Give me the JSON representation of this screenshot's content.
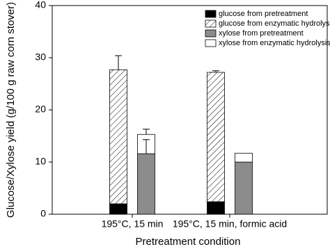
{
  "chart_data": {
    "type": "stacked-bar",
    "xlabel": "Pretreatment condition",
    "ylabel": "Glucose/Xylose yield (g/100 g raw corn stover)",
    "categories": [
      "195°C, 15 min",
      "195°C, 15 min, formic acid"
    ],
    "series": [
      {
        "name": "glucose from pretreatment",
        "color": "#000000",
        "hatch": false,
        "stack": 0,
        "values": [
          2.0,
          2.4
        ],
        "errors": [
          null,
          null
        ]
      },
      {
        "name": "glucose from enzymatic hydrolysis",
        "color": "#ffffff",
        "hatch": true,
        "stack": 0,
        "values": [
          25.7,
          24.8
        ],
        "errors": [
          2.7,
          0.3
        ]
      },
      {
        "name": "xylose from pretreatment",
        "color": "#8c8c8c",
        "hatch": false,
        "stack": 1,
        "values": [
          11.6,
          10.0
        ],
        "errors": [
          2.7,
          null
        ]
      },
      {
        "name": "xylose from enzymatic hydrolysis",
        "color": "#ffffff",
        "hatch": false,
        "stack": 1,
        "values": [
          3.7,
          1.7
        ],
        "errors": [
          1.0,
          null
        ]
      }
    ],
    "ylim": [
      0,
      40
    ],
    "yticks": [
      0,
      10,
      20,
      30,
      40
    ],
    "grid": false,
    "legend": "upper right"
  }
}
